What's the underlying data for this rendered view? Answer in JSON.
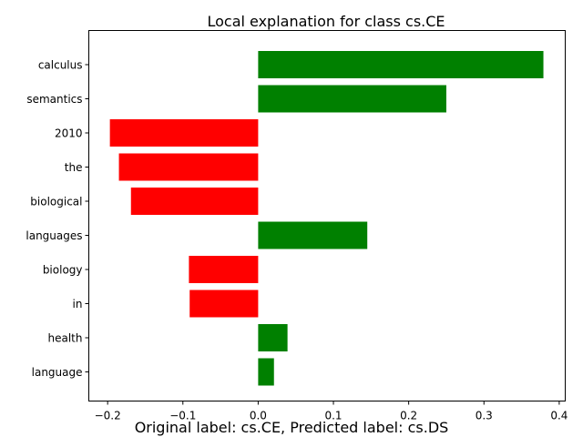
{
  "chart_data": {
    "type": "bar",
    "orientation": "horizontal",
    "title": "Local explanation for class cs.CE",
    "xlabel": "",
    "ylabel": "",
    "categories": [
      "calculus",
      "semantics",
      "2010",
      "the",
      "biological",
      "languages",
      "biology",
      "in",
      "health",
      "language"
    ],
    "values": [
      0.379,
      0.25,
      -0.197,
      -0.185,
      -0.169,
      0.145,
      -0.092,
      -0.091,
      0.039,
      0.021
    ],
    "xlim": [
      -0.225,
      0.408
    ],
    "xticks": [
      -0.2,
      -0.1,
      0.0,
      0.1,
      0.2,
      0.3,
      0.4
    ],
    "xtick_labels": [
      "−0.2",
      "−0.1",
      "0.0",
      "0.1",
      "0.2",
      "0.3",
      "0.4"
    ],
    "grid": false,
    "colors": {
      "positive": "#008000",
      "negative": "#ff0000"
    },
    "caption": "Original label: cs.CE, Predicted label: cs.DS"
  }
}
